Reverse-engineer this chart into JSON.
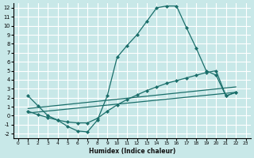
{
  "xlabel": "Humidex (Indice chaleur)",
  "xlim": [
    -0.5,
    23.5
  ],
  "ylim": [
    -2.5,
    12.5
  ],
  "yticks": [
    -2,
    -1,
    0,
    1,
    2,
    3,
    4,
    5,
    6,
    7,
    8,
    9,
    10,
    11,
    12
  ],
  "xticks": [
    0,
    1,
    2,
    3,
    4,
    5,
    6,
    7,
    8,
    9,
    10,
    11,
    12,
    13,
    14,
    15,
    16,
    17,
    18,
    19,
    20,
    21,
    22,
    23
  ],
  "bg_color": "#c8e8e8",
  "grid_color": "#ffffff",
  "line_color": "#1a6e6a",
  "line1_x": [
    1,
    2,
    3,
    4,
    5,
    6,
    7,
    8,
    9,
    10,
    11,
    12,
    13,
    14,
    15,
    16,
    17,
    18,
    19,
    20,
    21,
    22
  ],
  "line1_y": [
    2.2,
    1.1,
    0.0,
    -0.5,
    -1.2,
    -1.7,
    -1.8,
    -0.5,
    2.2,
    6.5,
    7.8,
    9.0,
    10.5,
    12.0,
    12.2,
    12.2,
    9.8,
    7.5,
    5.0,
    4.5,
    2.2,
    2.6
  ],
  "line2_x": [
    1,
    2,
    3,
    4,
    5,
    6,
    7,
    8,
    9,
    10,
    11,
    12,
    13,
    14,
    15,
    16,
    17,
    18,
    19,
    20,
    21,
    22
  ],
  "line2_y": [
    0.5,
    0.1,
    -0.2,
    -0.5,
    -0.7,
    -0.8,
    -0.8,
    -0.3,
    0.5,
    1.2,
    1.8,
    2.3,
    2.8,
    3.2,
    3.6,
    3.9,
    4.2,
    4.5,
    4.8,
    5.0,
    2.2,
    2.6
  ],
  "line3_x": [
    1,
    22
  ],
  "line3_y": [
    0.3,
    2.6
  ],
  "line4_x": [
    1,
    22
  ],
  "line4_y": [
    0.8,
    3.2
  ]
}
